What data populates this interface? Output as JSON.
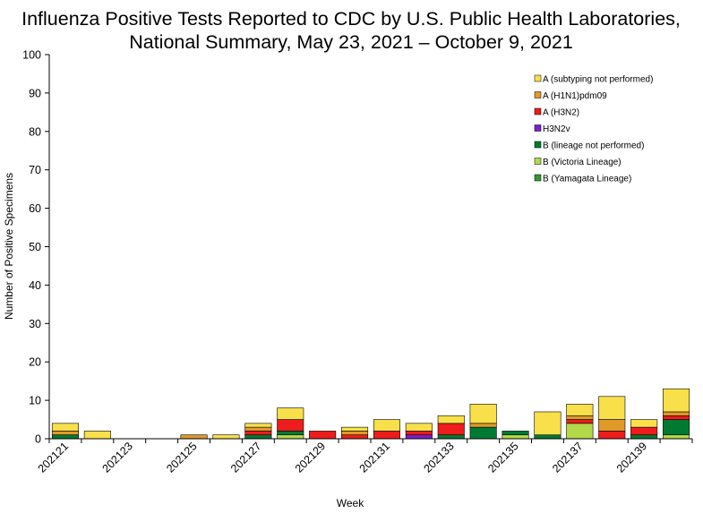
{
  "chart_data": {
    "type": "bar",
    "stacked": true,
    "title_line1": "Influenza Positive Tests Reported to CDC by U.S. Public Health Laboratories,",
    "title_line2": "National Summary, May 23, 2021 – October 9, 2021",
    "xlabel": "Week",
    "ylabel": "Number of Positive Specimens",
    "ylim": [
      0,
      100
    ],
    "yticks": [
      0,
      10,
      20,
      30,
      40,
      50,
      60,
      70,
      80,
      90,
      100
    ],
    "x_tick_labels": [
      "202121",
      "202123",
      "202125",
      "202127",
      "202129",
      "202131",
      "202133",
      "202135",
      "202137",
      "202139"
    ],
    "categories": [
      "202121",
      "202122",
      "202123",
      "202124",
      "202125",
      "202126",
      "202127",
      "202128",
      "202129",
      "202130",
      "202131",
      "202132",
      "202133",
      "202134",
      "202135",
      "202136",
      "202137",
      "202138",
      "202139",
      "202140"
    ],
    "legend_position": "top-right",
    "grid": false,
    "series": [
      {
        "name": "B (Yamagata Lineage)",
        "color": "#339933",
        "values": [
          0,
          0,
          0,
          0,
          0,
          0,
          0,
          0,
          0,
          0,
          0,
          0,
          0,
          0,
          0,
          0,
          0,
          0,
          0,
          0
        ]
      },
      {
        "name": "B (Victoria Lineage)",
        "color": "#B3D84A",
        "values": [
          0,
          0,
          0,
          0,
          0,
          0,
          0,
          1,
          0,
          0,
          0,
          0,
          0,
          0,
          1,
          0,
          4,
          0,
          0,
          1
        ]
      },
      {
        "name": "B (lineage not performed)",
        "color": "#007A33",
        "values": [
          1,
          0,
          0,
          0,
          0,
          0,
          1,
          1,
          0,
          0,
          0,
          0,
          1,
          3,
          1,
          1,
          0,
          0,
          1,
          4
        ]
      },
      {
        "name": "H3N2v",
        "color": "#7A1FD1",
        "values": [
          0,
          0,
          0,
          0,
          0,
          0,
          0,
          0,
          0,
          0,
          0,
          1,
          0,
          0,
          0,
          0,
          0,
          0,
          0,
          0
        ]
      },
      {
        "name": "A (H3N2)",
        "color": "#EE1C1C",
        "values": [
          0,
          0,
          0,
          0,
          0,
          0,
          1,
          3,
          2,
          1,
          2,
          1,
          3,
          0,
          0,
          0,
          1,
          2,
          2,
          1
        ]
      },
      {
        "name": "A (H1N1)pdm09",
        "color": "#E09A2A",
        "values": [
          1,
          0,
          0,
          0,
          1,
          0,
          1,
          0,
          0,
          1,
          0,
          0,
          0,
          1,
          0,
          0,
          1,
          3,
          0,
          1
        ]
      },
      {
        "name": "A (subtyping not performed)",
        "color": "#F7E04A",
        "values": [
          2,
          2,
          0,
          0,
          0,
          1,
          1,
          3,
          0,
          1,
          3,
          2,
          2,
          5,
          0,
          6,
          3,
          6,
          2,
          6
        ]
      }
    ],
    "legend_order": [
      "A (subtyping not performed)",
      "A (H1N1)pdm09",
      "A (H3N2)",
      "H3N2v",
      "B (lineage not performed)",
      "B (Victoria Lineage)",
      "B (Yamagata Lineage)"
    ]
  }
}
